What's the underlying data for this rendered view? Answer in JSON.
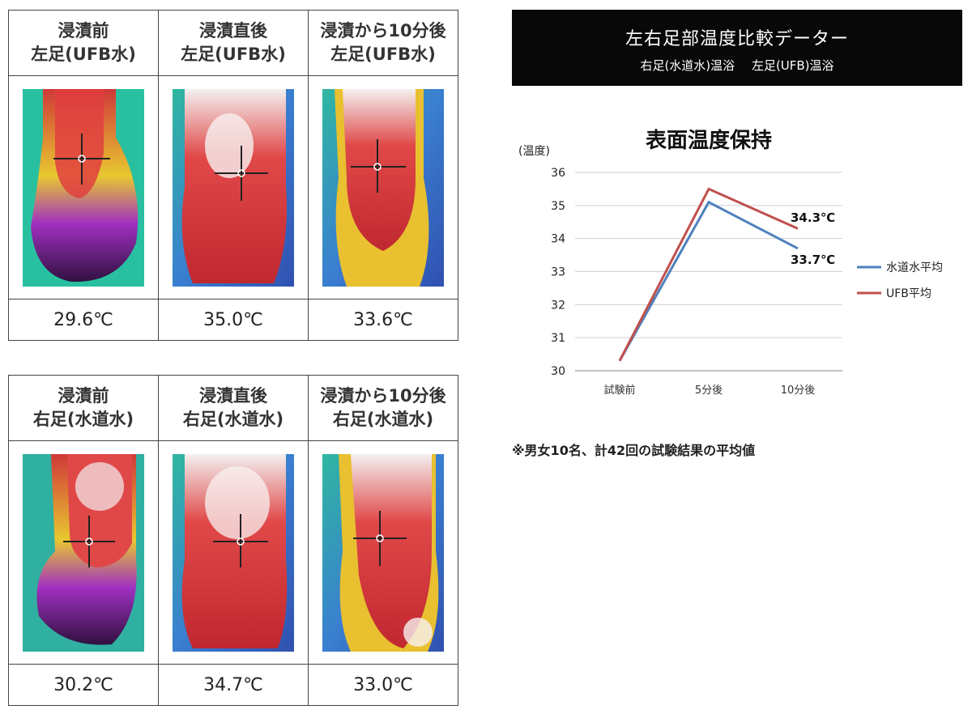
{
  "left_foot": {
    "headers": [
      {
        "line1": "浸漬前",
        "line2": "左足(UFB水)"
      },
      {
        "line1": "浸漬直後",
        "line2": "左足(UFB水)"
      },
      {
        "line1": "浸漬から10分後",
        "line2": "左足(UFB水)"
      }
    ],
    "temperatures": [
      "29.6℃",
      "35.0℃",
      "33.6℃"
    ]
  },
  "right_foot": {
    "headers": [
      {
        "line1": "浸漬前",
        "line2": "右足(水道水)"
      },
      {
        "line1": "浸漬直後",
        "line2": "右足(水道水)"
      },
      {
        "line1": "浸漬から10分後",
        "line2": "右足(水道水)"
      }
    ],
    "temperatures": [
      "30.2℃",
      "34.7℃",
      "33.0℃"
    ]
  },
  "banner": {
    "title": "左右足部温度比較データー",
    "subtitle_right": "右足(水道水)温浴",
    "subtitle_left": "左足(UFB)温浴"
  },
  "colors": {
    "tap_water": "#4f81bd",
    "ufb": "#c0504d"
  },
  "chart_data": {
    "type": "line",
    "title": "表面温度保持",
    "ylabel": "(温度)",
    "xlabel": "",
    "categories": [
      "試験前",
      "5分後",
      "10分後"
    ],
    "ylim": [
      30,
      36
    ],
    "yticks": [
      30,
      31,
      32,
      33,
      34,
      35,
      36
    ],
    "grid": true,
    "legend": "right",
    "series": [
      {
        "name": "水道水平均",
        "values": [
          30.3,
          35.1,
          33.7
        ],
        "color": "#4f81bd"
      },
      {
        "name": "UFB平均",
        "values": [
          30.3,
          35.5,
          34.3
        ],
        "color": "#c0504d"
      }
    ],
    "annotations": [
      "34.3℃",
      "33.7℃"
    ]
  },
  "footnote": "※男女10名、計42回の試験結果の平均値"
}
